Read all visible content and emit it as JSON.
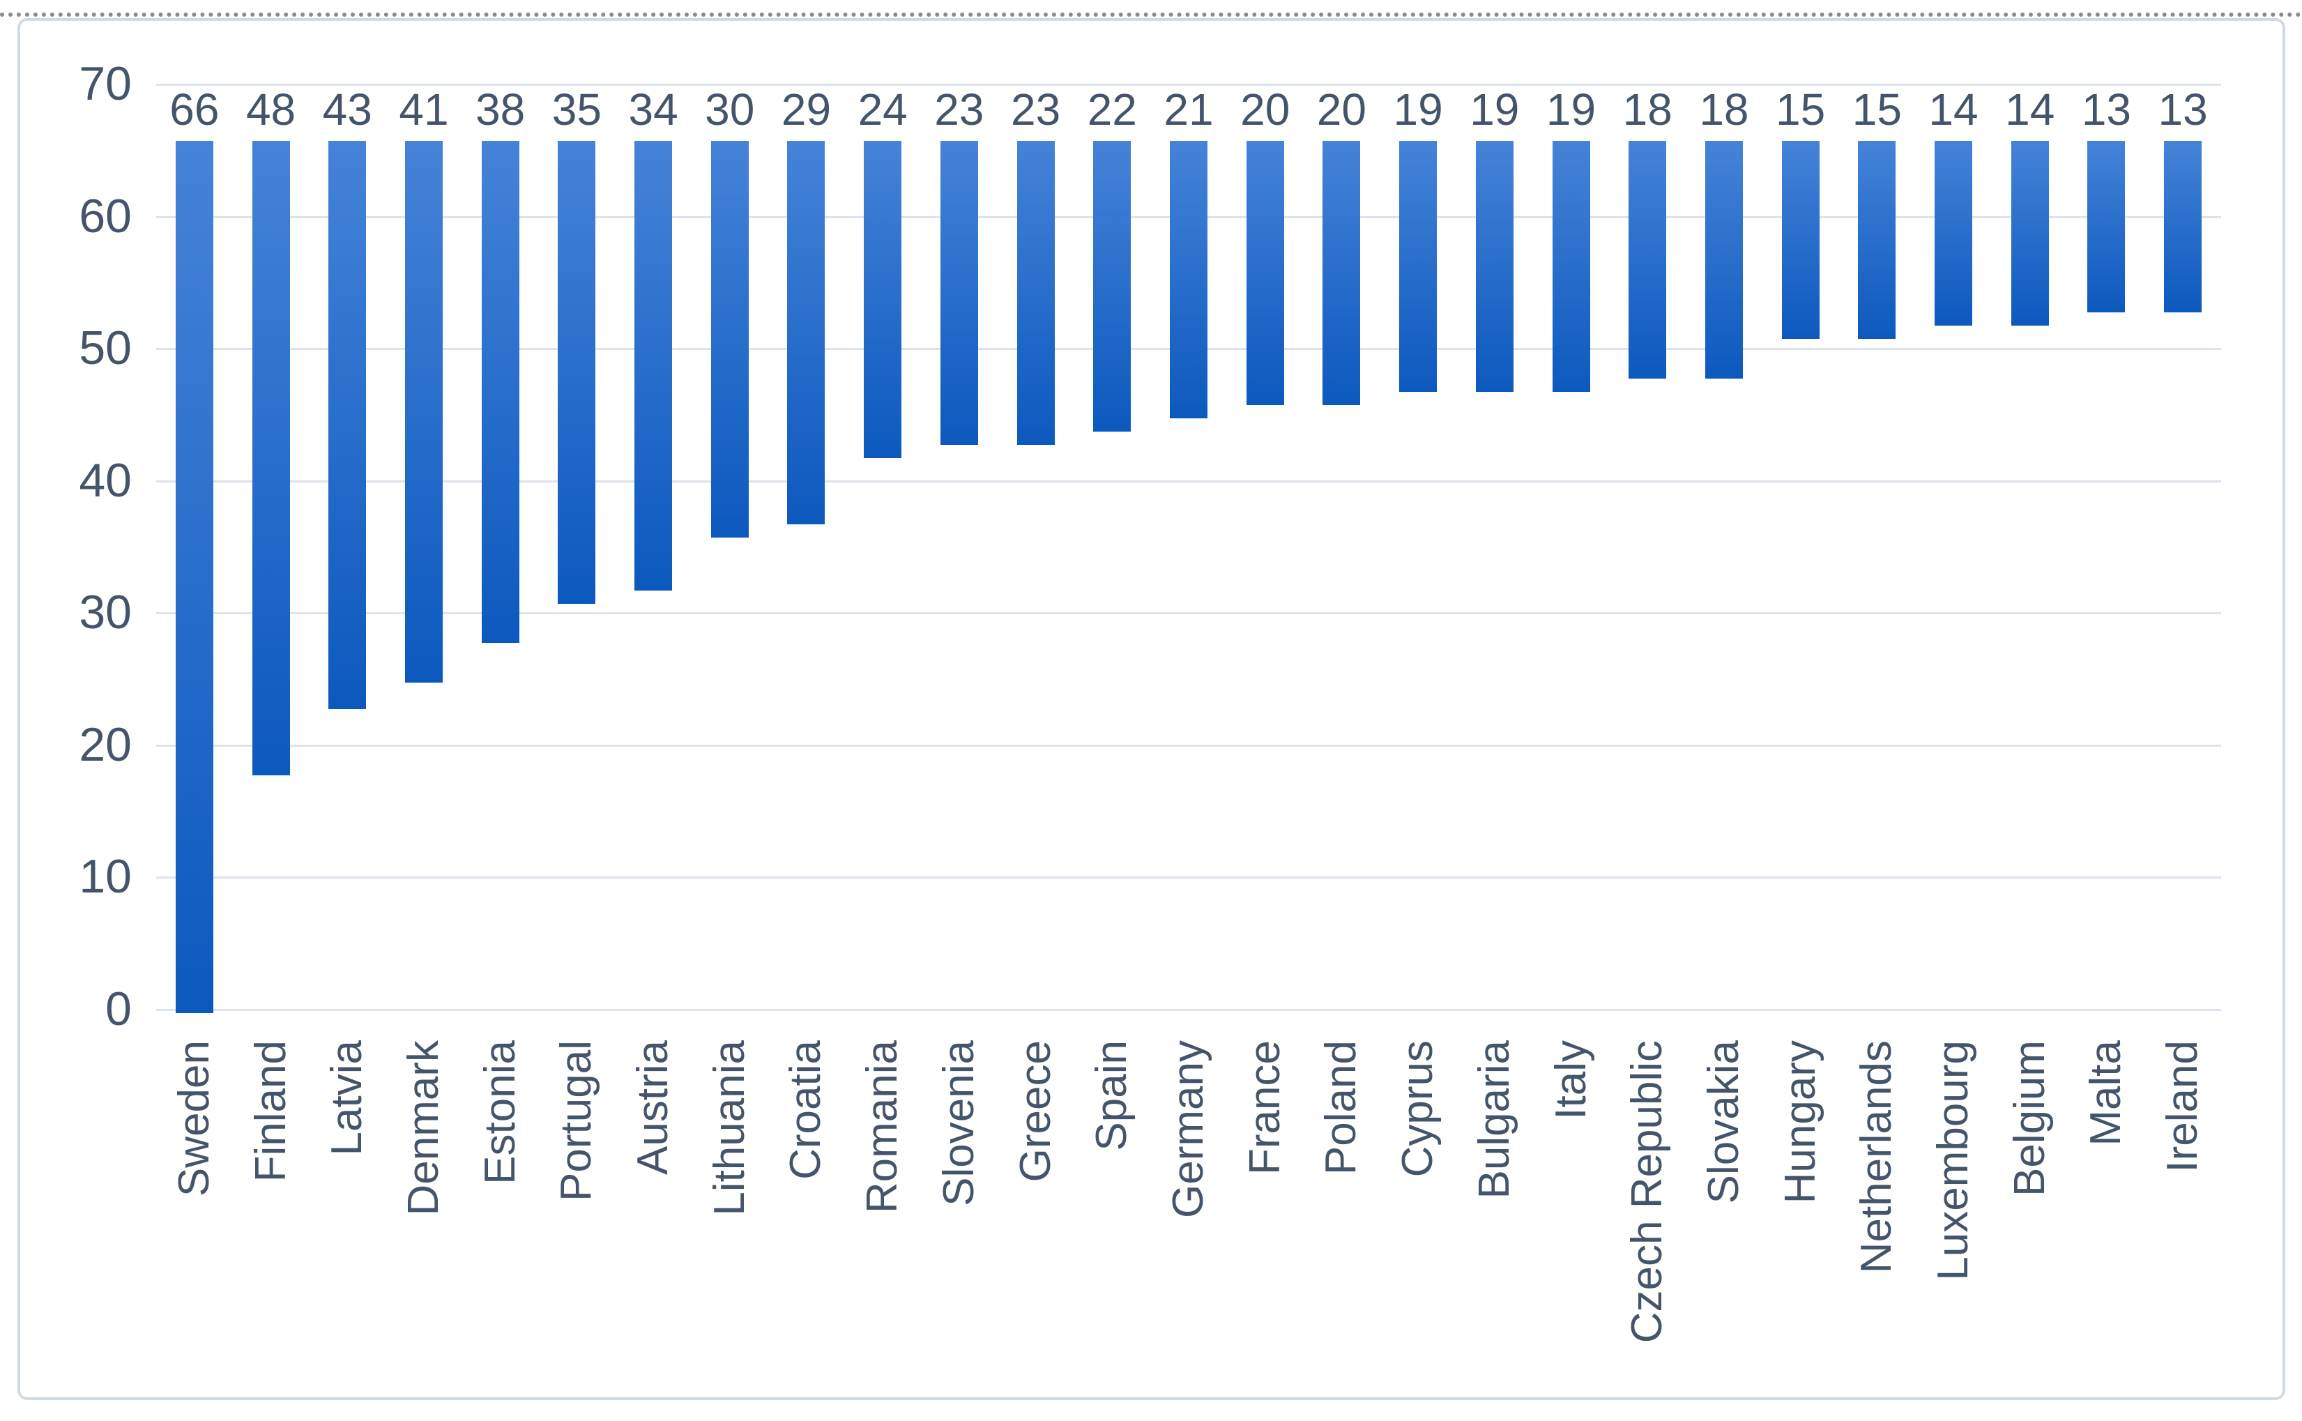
{
  "chart_data": {
    "type": "bar",
    "title": "",
    "xlabel": "",
    "ylabel": "",
    "categories": [
      "Sweden",
      "Finland",
      "Latvia",
      "Denmark",
      "Estonia",
      "Portugal",
      "Austria",
      "Lithuania",
      "Croatia",
      "Romania",
      "Slovenia",
      "Greece",
      "Spain",
      "Germany",
      "France",
      "Poland",
      "Cyprus",
      "Bulgaria",
      "Italy",
      "Czech Republic",
      "Slovakia",
      "Hungary",
      "Netherlands",
      "Luxembourg",
      "Belgium",
      "Malta",
      "Ireland"
    ],
    "values": [
      66,
      48,
      43,
      41,
      38,
      35,
      34,
      30,
      29,
      24,
      23,
      23,
      22,
      21,
      20,
      20,
      19,
      19,
      19,
      18,
      18,
      15,
      15,
      14,
      14,
      13,
      13
    ],
    "y_ticks": [
      0,
      10,
      20,
      30,
      40,
      50,
      60,
      70
    ],
    "ylim": [
      0,
      70
    ],
    "grid": "horizontal",
    "legend": "none",
    "data_labels": "above-bars",
    "category_label_rotation": "bottom-up",
    "colors": {
      "bar_gradient_top": "#4583d8",
      "bar_gradient_bottom": "#0c59be",
      "text": "#44546A",
      "gridline": "#dde3ec",
      "frame_border": "#d0d9e4",
      "page_dotted_line": "#8a8a8a",
      "background": "#ffffff"
    }
  }
}
